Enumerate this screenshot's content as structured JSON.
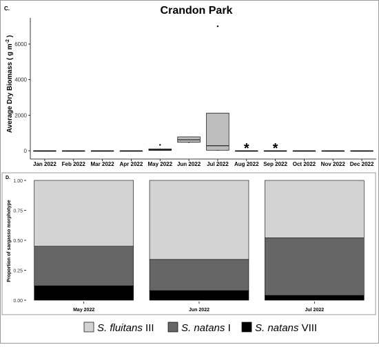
{
  "figure": {
    "frame_color": "#999999"
  },
  "chart_data": [
    {
      "type": "box",
      "panel_label": "C.",
      "title": "Crandon Park",
      "xlabel": "",
      "ylabel": "Average Dry Biomass ( g m",
      "ylabel_sup": "-2",
      "ylabel_close": " )",
      "ylim": [
        0,
        7200
      ],
      "yticks": [
        0,
        2000,
        4000,
        6000
      ],
      "grid": false,
      "box_fill": "#bdbdbd",
      "categories": [
        "Jan 2022",
        "Feb 2022",
        "Mar 2022",
        "Apr 2022",
        "May 2022",
        "Jun 2022",
        "Jul 2022",
        "Aug 2022",
        "Sep 2022",
        "Oct 2022",
        "Nov 2022",
        "Dec 2022"
      ],
      "boxes": [
        {
          "q1": 0,
          "median": 0,
          "q3": 0,
          "min": 0,
          "max": 0
        },
        {
          "q1": 0,
          "median": 0,
          "q3": 0,
          "min": 0,
          "max": 0
        },
        {
          "q1": 0,
          "median": 0,
          "q3": 0,
          "min": 0,
          "max": 0
        },
        {
          "q1": 0,
          "median": 0,
          "q3": 0,
          "min": 0,
          "max": 0
        },
        {
          "q1": 20,
          "median": 60,
          "q3": 110,
          "min": 0,
          "max": 130
        },
        {
          "q1": 480,
          "median": 620,
          "q3": 780,
          "min": 420,
          "max": 800
        },
        {
          "q1": 30,
          "median": 280,
          "q3": 2120,
          "min": 0,
          "max": 2120
        },
        {
          "q1": 0,
          "median": 0,
          "q3": 0,
          "min": 0,
          "max": 0
        },
        {
          "q1": 0,
          "median": 0,
          "q3": 0,
          "min": 0,
          "max": 0
        },
        {
          "q1": 0,
          "median": 0,
          "q3": 0,
          "min": 0,
          "max": 0
        },
        {
          "q1": 0,
          "median": 0,
          "q3": 0,
          "min": 0,
          "max": 0
        },
        {
          "q1": 0,
          "median": 0,
          "q3": 0,
          "min": 0,
          "max": 0
        }
      ],
      "outliers": [
        {
          "category": "May 2022",
          "value": 330
        },
        {
          "category": "Jul 2022",
          "value": 7000
        }
      ],
      "annotations": [
        {
          "category": "Aug 2022",
          "text": "*",
          "value": 150
        },
        {
          "category": "Sep 2022",
          "text": "*",
          "value": 150
        }
      ]
    },
    {
      "type": "bar",
      "stacked": true,
      "panel_label": "D.",
      "title": "",
      "xlabel": "",
      "ylabel": "Proportion of sargasso morphotype",
      "ylim": [
        0,
        1.0
      ],
      "yticks": [
        "0.00",
        "0.25",
        "0.50",
        "0.75",
        "1.00"
      ],
      "grid": false,
      "categories": [
        "May 2022",
        "Jun 2022",
        "Jul 2022"
      ],
      "series": [
        {
          "name": "S. natans VIII",
          "name_italic": "S. natans",
          "name_roman": "VIII",
          "color": "#000000",
          "values": [
            0.12,
            0.08,
            0.04
          ]
        },
        {
          "name": "S. natans I",
          "name_italic": "S. natans",
          "name_roman": "I",
          "color": "#666666",
          "values": [
            0.33,
            0.26,
            0.48
          ]
        },
        {
          "name": "S. fluitans III",
          "name_italic": "S. fluitans",
          "name_roman": "III",
          "color": "#d3d3d3",
          "values": [
            0.55,
            0.66,
            0.48
          ]
        }
      ],
      "legend": {
        "placement": "bottom",
        "order": [
          "S. fluitans III",
          "S. natans I",
          "S. natans VIII"
        ]
      }
    }
  ]
}
